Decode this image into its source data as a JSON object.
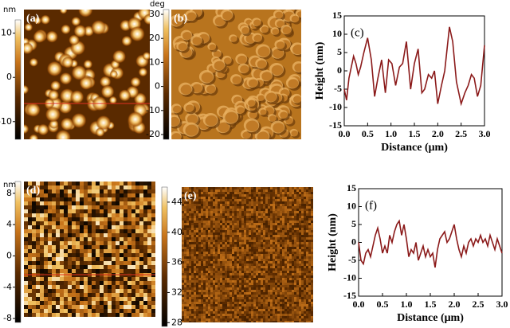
{
  "chart_data": [
    {
      "type": "line",
      "label": "(c)",
      "xlabel": "Distance (μm)",
      "ylabel": "Height (nm)",
      "color": "#8b1a1a",
      "x": [
        0,
        0.05,
        0.1,
        0.2,
        0.25,
        0.3,
        0.35,
        0.42,
        0.5,
        0.58,
        0.65,
        0.72,
        0.8,
        0.88,
        0.95,
        1.02,
        1.1,
        1.18,
        1.25,
        1.33,
        1.42,
        1.5,
        1.58,
        1.66,
        1.72,
        1.8,
        1.87,
        1.93,
        2.0,
        2.08,
        2.15,
        2.25,
        2.32,
        2.4,
        2.5,
        2.58,
        2.65,
        2.72,
        2.78,
        2.85,
        2.92,
        3.0
      ],
      "values": [
        -5,
        -8,
        -2,
        4,
        2,
        -1,
        1,
        5,
        9,
        3,
        -7,
        -2,
        3,
        -6,
        3,
        2,
        -4,
        1,
        2,
        8,
        -5,
        2,
        6,
        -6,
        -5,
        -1,
        -2,
        0,
        -9,
        -4,
        0,
        12,
        8,
        -3,
        -9,
        -6,
        -4,
        -1,
        -2,
        -7,
        -4,
        7
      ],
      "xlim": [
        0,
        3
      ],
      "ylim": [
        -15,
        15
      ],
      "xticks": [
        {
          "value": 0,
          "label": "0.0"
        },
        0.5,
        {
          "value": 1,
          "label": "1.0"
        },
        1.5,
        {
          "value": 2,
          "label": "2.0"
        },
        2.5,
        {
          "value": 3,
          "label": "3.0"
        }
      ],
      "yticks": [
        -15,
        -10,
        -5,
        0,
        5,
        10,
        15
      ]
    },
    {
      "type": "line",
      "label": "(f)",
      "xlabel": "Distance (μm)",
      "ylabel": "Height (nm)",
      "color": "#8b1a1a",
      "x": [
        0,
        0.05,
        0.1,
        0.15,
        0.2,
        0.25,
        0.3,
        0.35,
        0.4,
        0.45,
        0.5,
        0.55,
        0.6,
        0.65,
        0.7,
        0.75,
        0.8,
        0.85,
        0.9,
        0.95,
        1,
        1.05,
        1.1,
        1.15,
        1.2,
        1.25,
        1.3,
        1.35,
        1.4,
        1.45,
        1.5,
        1.55,
        1.6,
        1.65,
        1.7,
        1.75,
        1.8,
        1.85,
        1.9,
        1.95,
        2,
        2.05,
        2.1,
        2.15,
        2.2,
        2.25,
        2.3,
        2.35,
        2.4,
        2.45,
        2.5,
        2.55,
        2.6,
        2.65,
        2.7,
        2.75,
        2.8,
        2.85,
        2.9,
        2.95,
        3
      ],
      "values": [
        0,
        -5,
        -6,
        -3,
        -2,
        -4,
        -1,
        2,
        4,
        1,
        -3,
        -1,
        -3,
        2,
        0,
        3,
        5,
        6,
        2,
        5,
        1,
        -4,
        -2,
        -3,
        0,
        -5,
        -3,
        -1,
        -4,
        -2,
        -4,
        -3,
        -7,
        -2,
        1,
        2,
        3,
        0,
        1,
        3,
        5,
        1,
        -2,
        -4,
        -1,
        -3,
        0,
        1,
        -1,
        1,
        0,
        2,
        0,
        1,
        -1,
        2,
        0,
        -2,
        1,
        -1,
        -3
      ],
      "xlim": [
        0,
        3
      ],
      "ylim": [
        -15,
        15
      ],
      "xticks": [
        {
          "value": 0,
          "label": "0.0"
        },
        0.5,
        {
          "value": 1,
          "label": "1.0"
        },
        1.5,
        {
          "value": 2,
          "label": "2.0"
        },
        2.5,
        {
          "value": 3,
          "label": "3.0"
        }
      ],
      "yticks": [
        -15,
        -10,
        -5,
        0,
        5,
        10,
        15
      ]
    }
  ],
  "panels": [
    {
      "label": "(a)",
      "unit": "nm",
      "ticks": [
        10,
        0,
        -10
      ],
      "lim": [
        -14,
        13
      ]
    },
    {
      "label": "(b)",
      "unit": "deg",
      "ticks": [
        30,
        20,
        10,
        0,
        -10,
        -20
      ],
      "lim": [
        -22,
        32
      ]
    },
    {
      "label": "(d)",
      "unit": "nm",
      "ticks": [
        8,
        4,
        0,
        -4,
        -8
      ],
      "lim": [
        -8.5,
        9.5
      ]
    },
    {
      "label": "(e)",
      "ticks": [
        44,
        40,
        36,
        32,
        28
      ],
      "lim": [
        27.5,
        46
      ]
    }
  ]
}
